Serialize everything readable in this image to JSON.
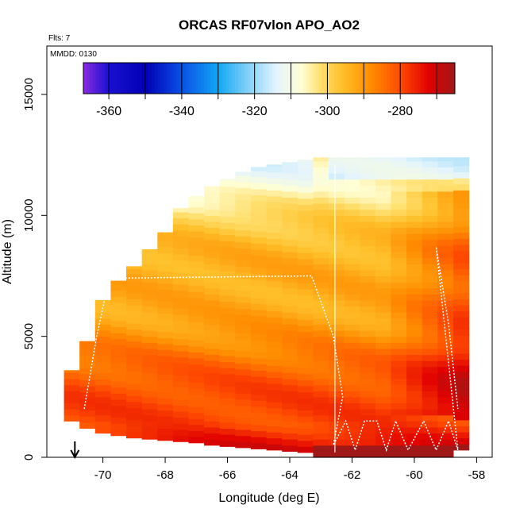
{
  "chart_data": {
    "type": "heatmap",
    "title": "ORCAS RF07vlon APO_AO2",
    "subtitle_left": "Flts: 7",
    "date_label": "MMDD: 0130",
    "xlabel": "Longitude (deg E)",
    "ylabel": "Altitude (m)",
    "xlim": [
      -71.8,
      -57.5
    ],
    "ylim": [
      0,
      17000
    ],
    "x_ticks": [
      -70,
      -68,
      -66,
      -64,
      -62,
      -60,
      -58
    ],
    "y_ticks": [
      0,
      5000,
      10000,
      15000
    ],
    "colorbar": {
      "range": [
        -367,
        -265
      ],
      "ticks": [
        -360,
        -340,
        -320,
        -300,
        -280
      ],
      "stops": [
        {
          "v": -367,
          "color": "#8a2be2"
        },
        {
          "v": -360,
          "color": "#1a10d0"
        },
        {
          "v": -350,
          "color": "#0000b4"
        },
        {
          "v": -340,
          "color": "#0a50e6"
        },
        {
          "v": -330,
          "color": "#10a8f4"
        },
        {
          "v": -322,
          "color": "#7fd0f8"
        },
        {
          "v": -314,
          "color": "#e4f4fc"
        },
        {
          "v": -307,
          "color": "#fffed4"
        },
        {
          "v": -302,
          "color": "#ffe070"
        },
        {
          "v": -296,
          "color": "#ffc02a"
        },
        {
          "v": -288,
          "color": "#ff8c00"
        },
        {
          "v": -280,
          "color": "#ff4a00"
        },
        {
          "v": -272,
          "color": "#e00000"
        },
        {
          "v": -265,
          "color": "#a01818"
        }
      ]
    },
    "grid": false,
    "legend": "colorbar at top, inside plot",
    "profiles": {
      "columns_lon": [
        -71.0,
        -70.5,
        -70.0,
        -69.5,
        -69.0,
        -68.5,
        -68.0,
        -67.5,
        -67.0,
        -66.5,
        -66.0,
        -65.5,
        -65.0,
        -64.5,
        -64.0,
        -63.5,
        -63.0,
        -62.5,
        -62.0,
        -61.5,
        -61.0,
        -60.5,
        -60.0,
        -59.5,
        -59.0,
        -58.5
      ],
      "top_alt": [
        3600,
        4800,
        6500,
        7300,
        7900,
        8600,
        9300,
        10300,
        10800,
        11200,
        11500,
        11800,
        12000,
        12100,
        12200,
        12300,
        12400,
        12400,
        12400,
        12400,
        12400,
        12400,
        12400,
        12400,
        12400,
        12400
      ],
      "bottom_alt": [
        1500,
        1200,
        1000,
        900,
        800,
        750,
        700,
        650,
        600,
        500,
        450,
        400,
        350,
        300,
        250,
        200,
        0,
        0,
        0,
        0,
        0,
        0,
        0,
        0,
        0,
        300
      ]
    },
    "flight_track": [
      {
        "lon": -70.6,
        "alt": 2000
      },
      {
        "lon": -70.2,
        "alt": 5000
      },
      {
        "lon": -69.8,
        "alt": 7400
      },
      {
        "lon": -63.3,
        "alt": 7500
      },
      {
        "lon": -62.6,
        "alt": 5000
      },
      {
        "lon": -62.3,
        "alt": 2500
      },
      {
        "lon": -62.6,
        "alt": 500
      },
      {
        "lon": -62.2,
        "alt": 1500
      },
      {
        "lon": -61.9,
        "alt": 300
      },
      {
        "lon": -61.6,
        "alt": 1500
      },
      {
        "lon": -61.2,
        "alt": 1500
      },
      {
        "lon": -60.9,
        "alt": 300
      },
      {
        "lon": -60.6,
        "alt": 1500
      },
      {
        "lon": -60.2,
        "alt": 300
      },
      {
        "lon": -59.7,
        "alt": 1500
      },
      {
        "lon": -59.3,
        "alt": 300
      },
      {
        "lon": -58.9,
        "alt": 1500
      },
      {
        "lon": -58.6,
        "alt": 300
      },
      {
        "lon": -59.3,
        "alt": 8700
      },
      {
        "lon": -58.9,
        "alt": 5500
      },
      {
        "lon": -58.6,
        "alt": 2000
      }
    ],
    "base_marker_lon": -70.9
  }
}
